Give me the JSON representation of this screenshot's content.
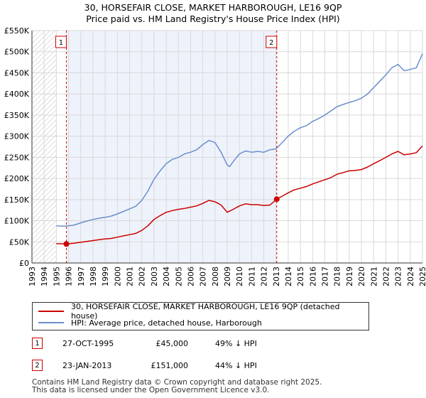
{
  "header": {
    "title": "30, HORSEFAIR CLOSE, MARKET HARBOROUGH, LE16 9QP",
    "subtitle": "Price paid vs. HM Land Registry's House Price Index (HPI)"
  },
  "colors": {
    "property": "#cc0000",
    "hpi": "#6a8fcc",
    "shade": "#eef2fb",
    "grid": "#d9d9d9"
  },
  "legend": {
    "property_label": "30, HORSEFAIR CLOSE, MARKET HARBOROUGH, LE16 9QP (detached house)",
    "hpi_label": "HPI: Average price, detached house, Harborough"
  },
  "sales": [
    {
      "num": "1",
      "date": "27-OCT-1995",
      "price": "£45,000",
      "hpi_change": "49% ↓ HPI"
    },
    {
      "num": "2",
      "date": "23-JAN-2013",
      "price": "£151,000",
      "hpi_change": "44% ↓ HPI"
    }
  ],
  "footer": {
    "line1": "Contains HM Land Registry data © Crown copyright and database right 2025.",
    "line2": "This data is licensed under the Open Government Licence v3.0."
  },
  "chart_data": {
    "type": "line",
    "title": "30, HORSEFAIR CLOSE, MARKET HARBOROUGH, LE16 9QP",
    "xlabel": "",
    "ylabel": "",
    "xlim": [
      1993,
      2025
    ],
    "ylim": [
      0,
      550000
    ],
    "y_ticks": [
      0,
      50000,
      100000,
      150000,
      200000,
      250000,
      300000,
      350000,
      400000,
      450000,
      500000,
      550000
    ],
    "y_tick_labels": [
      "£0",
      "£50K",
      "£100K",
      "£150K",
      "£200K",
      "£250K",
      "£300K",
      "£350K",
      "£400K",
      "£450K",
      "£500K",
      "£550K"
    ],
    "x_ticks": [
      1993,
      1994,
      1995,
      1996,
      1997,
      1998,
      1999,
      2000,
      2001,
      2002,
      2003,
      2004,
      2005,
      2006,
      2007,
      2008,
      2009,
      2010,
      2011,
      2012,
      2013,
      2014,
      2015,
      2016,
      2017,
      2018,
      2019,
      2020,
      2021,
      2022,
      2023,
      2024,
      2025
    ],
    "hatched_range": [
      1993,
      1995.0
    ],
    "shaded_range": [
      1995.82,
      2013.06
    ],
    "markers": [
      {
        "label": "1",
        "x": 1995.82,
        "y": 45000
      },
      {
        "label": "2",
        "x": 2013.06,
        "y": 151000
      }
    ],
    "series": [
      {
        "name": "HPI: Average price, detached house, Harborough",
        "x": [
          1995.0,
          1995.5,
          1996.0,
          1996.5,
          1997.0,
          1997.5,
          1998.0,
          1998.5,
          1999.0,
          1999.5,
          2000.0,
          2000.5,
          2001.0,
          2001.5,
          2002.0,
          2002.5,
          2003.0,
          2003.5,
          2004.0,
          2004.5,
          2005.0,
          2005.5,
          2006.0,
          2006.5,
          2007.0,
          2007.5,
          2008.0,
          2008.5,
          2009.0,
          2009.2,
          2009.5,
          2010.0,
          2010.5,
          2011.0,
          2011.5,
          2012.0,
          2012.5,
          2013.0,
          2013.5,
          2014.0,
          2014.5,
          2015.0,
          2015.5,
          2016.0,
          2016.5,
          2017.0,
          2017.5,
          2018.0,
          2018.5,
          2019.0,
          2019.5,
          2020.0,
          2020.5,
          2021.0,
          2021.5,
          2022.0,
          2022.5,
          2023.0,
          2023.5,
          2024.0,
          2024.5,
          2025.0
        ],
        "y": [
          88000,
          87000,
          88000,
          90000,
          95000,
          99000,
          103000,
          106000,
          108000,
          111000,
          116000,
          122000,
          128000,
          134000,
          148000,
          170000,
          198000,
          218000,
          235000,
          245000,
          250000,
          258000,
          262000,
          268000,
          280000,
          290000,
          285000,
          262000,
          232000,
          228000,
          240000,
          258000,
          265000,
          262000,
          264000,
          262000,
          268000,
          270000,
          285000,
          300000,
          312000,
          320000,
          325000,
          335000,
          342000,
          350000,
          360000,
          370000,
          375000,
          380000,
          384000,
          390000,
          400000,
          415000,
          430000,
          445000,
          462000,
          470000,
          455000,
          458000,
          462000,
          495000
        ]
      },
      {
        "name": "30, HORSEFAIR CLOSE, MARKET HARBOROUGH, LE16 9QP (detached house)",
        "x": [
          1995.0,
          1995.82,
          1996.5,
          1997.0,
          1997.5,
          1998.0,
          1998.5,
          1999.0,
          1999.5,
          2000.0,
          2000.5,
          2001.0,
          2001.5,
          2002.0,
          2002.5,
          2003.0,
          2003.5,
          2004.0,
          2004.5,
          2005.0,
          2005.5,
          2006.0,
          2006.5,
          2007.0,
          2007.5,
          2008.0,
          2008.5,
          2009.0,
          2009.5,
          2010.0,
          2010.5,
          2011.0,
          2011.5,
          2012.0,
          2012.5,
          2013.06,
          2013.5,
          2014.0,
          2014.5,
          2015.0,
          2015.5,
          2016.0,
          2016.5,
          2017.0,
          2017.5,
          2018.0,
          2018.5,
          2019.0,
          2019.5,
          2020.0,
          2020.5,
          2021.0,
          2021.5,
          2022.0,
          2022.5,
          2023.0,
          2023.5,
          2024.0,
          2024.5,
          2025.0
        ],
        "y": [
          46000,
          45000,
          47000,
          49000,
          51000,
          53000,
          55000,
          57000,
          58000,
          61000,
          64000,
          67000,
          70000,
          77000,
          88000,
          103000,
          112000,
          120000,
          124000,
          127000,
          129000,
          132000,
          135000,
          141000,
          148000,
          145000,
          137000,
          120000,
          127000,
          135000,
          140000,
          138000,
          138000,
          136000,
          137000,
          151000,
          158000,
          166000,
          173000,
          177000,
          181000,
          187000,
          192000,
          197000,
          202000,
          210000,
          214000,
          218000,
          219000,
          221000,
          227000,
          235000,
          242000,
          250000,
          258000,
          264000,
          256000,
          258000,
          261000,
          277000
        ]
      }
    ]
  }
}
